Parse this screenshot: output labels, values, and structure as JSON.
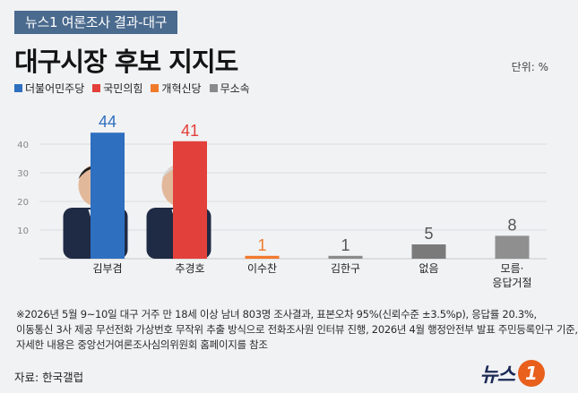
{
  "header": {
    "tag": "뉴스1 여론조사 결과-대구",
    "title": "대구시장 후보 지지도",
    "unit": "단위: %"
  },
  "legend": [
    {
      "label": "더불어민주당",
      "color": "#2e6fc0"
    },
    {
      "label": "국민의힘",
      "color": "#e2403a"
    },
    {
      "label": "개혁신당",
      "color": "#f07a2c"
    },
    {
      "label": "무소속",
      "color": "#8a8a8a"
    }
  ],
  "chart_data": {
    "type": "bar",
    "categories": [
      "김부겸",
      "추경호",
      "이수찬",
      "김한구",
      "없음",
      "모름·\n응답거절"
    ],
    "values": [
      44,
      41,
      1,
      1,
      5,
      8
    ],
    "colors": [
      "#2e6fc0",
      "#e2403a",
      "#f07a2c",
      "#8a8a8a",
      "#7a7a7a",
      "#8f8f8f"
    ],
    "label_colors": [
      "#2e6fc0",
      "#e2403a",
      "#f07a2c",
      "#555555",
      "#555555",
      "#555555"
    ],
    "yticks": [
      10,
      20,
      30,
      40
    ],
    "ylim": [
      0,
      50
    ]
  },
  "footnote": [
    "※2026년 5월 9~10일 대구 거주 만 18세 이상 남녀 803명 조사결과, 표본오차 95%(신뢰수준 ±3.5%p), 응답률 20.3%,",
    "이동통신 3사 제공 무선전화 가상번호 무작위 추출 방식으로 전화조사원 인터뷰 진행, 2026년 4월 행정안전부 발표 주민등록인구 기준,",
    "자세한 내용은 중앙선거여론조사심의위원회 홈페이지를 참조"
  ],
  "source": "자료: 한국갤럽",
  "brand": {
    "text": "뉴스",
    "mark": "1"
  }
}
